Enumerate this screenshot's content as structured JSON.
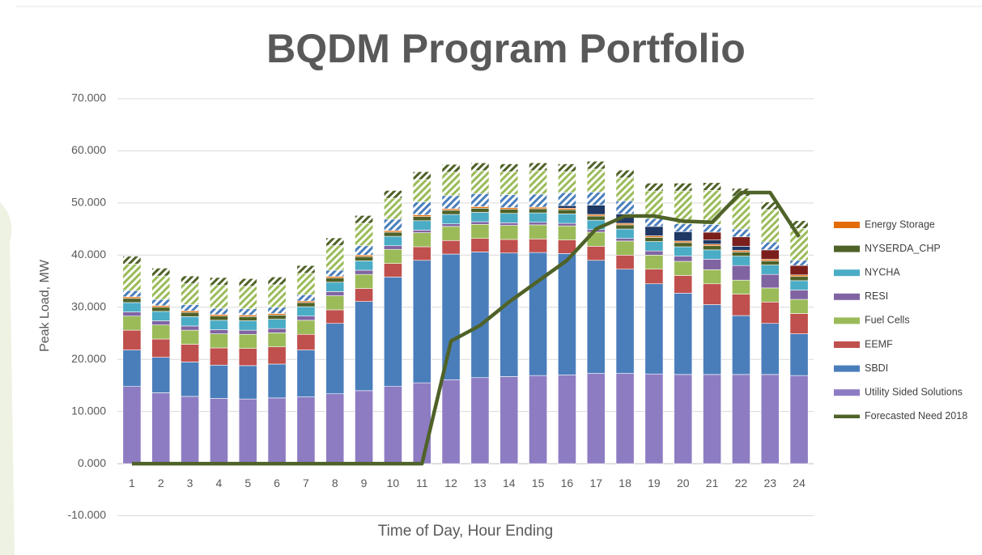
{
  "chart_data": {
    "type": "stacked_bar_line",
    "title": "BQDM Program Portfolio",
    "y_axis_label": "Peak Load, MW",
    "x_axis_label": "Time of Day, Hour Ending",
    "categories": [
      "1",
      "2",
      "3",
      "4",
      "5",
      "6",
      "7",
      "8",
      "9",
      "10",
      "11",
      "12",
      "13",
      "14",
      "15",
      "16",
      "17",
      "18",
      "19",
      "20",
      "21",
      "22",
      "23",
      "24"
    ],
    "ylim": [
      -10,
      70
    ],
    "yticks": [
      {
        "value": -10,
        "label": "-10.000"
      },
      {
        "value": 0,
        "label": "0.000"
      },
      {
        "value": 10,
        "label": "10.000"
      },
      {
        "value": 20,
        "label": "20.000"
      },
      {
        "value": 30,
        "label": "30.000"
      },
      {
        "value": 40,
        "label": "40.000"
      },
      {
        "value": 50,
        "label": "50.000"
      },
      {
        "value": 60,
        "label": "60.000"
      },
      {
        "value": 70,
        "label": "70.000"
      }
    ],
    "grid": true,
    "legend_position": "right",
    "series": [
      {
        "name": "Utility Sided Solutions",
        "color": "#8e7cc3",
        "values": [
          14.8,
          13.6,
          12.9,
          12.5,
          12.4,
          12.6,
          12.8,
          13.4,
          14.0,
          14.8,
          15.5,
          16.1,
          16.5,
          16.7,
          16.9,
          17.0,
          17.3,
          17.3,
          17.2,
          17.1,
          17.1,
          17.1,
          17.1,
          16.9
        ]
      },
      {
        "name": "SBDI",
        "color": "#4a7ebb",
        "values": [
          7.0,
          6.8,
          6.6,
          6.4,
          6.4,
          6.5,
          9.0,
          13.5,
          17.1,
          21.0,
          23.5,
          24.1,
          24.1,
          23.7,
          23.6,
          23.3,
          21.7,
          20.0,
          17.3,
          15.6,
          13.4,
          11.3,
          9.8,
          8.0
        ]
      },
      {
        "name": "EEMF",
        "color": "#c0504d",
        "values": [
          3.8,
          3.5,
          3.4,
          3.3,
          3.3,
          3.3,
          3.0,
          2.6,
          2.5,
          2.6,
          2.6,
          2.6,
          2.6,
          2.6,
          2.6,
          2.6,
          2.7,
          2.7,
          2.8,
          3.4,
          4.0,
          4.1,
          4.1,
          3.9
        ]
      },
      {
        "name": "Fuel Cells",
        "color": "#9bbb59",
        "values": [
          2.7,
          2.7,
          2.7,
          2.7,
          2.7,
          2.7,
          2.7,
          2.7,
          2.7,
          2.7,
          2.7,
          2.7,
          2.7,
          2.7,
          2.7,
          2.7,
          2.7,
          2.7,
          2.7,
          2.7,
          2.7,
          2.7,
          2.7,
          2.7
        ]
      },
      {
        "name": "RESI",
        "color": "#8064a2",
        "values": [
          0.8,
          0.8,
          0.8,
          0.8,
          0.8,
          0.8,
          0.8,
          0.8,
          0.8,
          0.7,
          0.5,
          0.5,
          0.5,
          0.5,
          0.5,
          0.5,
          0.5,
          0.5,
          0.8,
          1.0,
          2.0,
          2.8,
          2.6,
          1.8
        ]
      },
      {
        "name": "NYCHA",
        "color": "#4bacc6",
        "values": [
          1.8,
          1.8,
          1.8,
          1.8,
          1.8,
          1.8,
          1.8,
          1.8,
          1.8,
          1.8,
          1.8,
          1.8,
          1.8,
          1.8,
          1.8,
          1.8,
          1.8,
          1.8,
          1.8,
          1.8,
          1.8,
          1.8,
          1.8,
          1.8
        ]
      },
      {
        "name": "NYSERDA_CHP",
        "color": "#4f6228",
        "values": [
          0.8,
          0.8,
          0.8,
          0.8,
          0.8,
          0.8,
          0.8,
          0.8,
          0.8,
          0.8,
          0.8,
          0.8,
          0.8,
          0.8,
          0.8,
          0.8,
          0.8,
          0.8,
          0.8,
          0.8,
          0.8,
          0.8,
          0.8,
          0.8
        ]
      },
      {
        "name": "Energy Storage",
        "color": "#e36c09",
        "values": [
          0.3,
          0.3,
          0.3,
          0.3,
          0.3,
          0.3,
          0.3,
          0.3,
          0.3,
          0.3,
          0.3,
          0.3,
          0.3,
          0.3,
          0.3,
          0.3,
          0.3,
          0.3,
          0.3,
          0.3,
          0.3,
          0.3,
          0.3,
          0.3
        ]
      },
      {
        "color": "#1f3864",
        "values": [
          0,
          0,
          0,
          0,
          0,
          0,
          0,
          0,
          0,
          0,
          0,
          0,
          0,
          0,
          0,
          0.5,
          1.8,
          1.8,
          1.8,
          1.8,
          0.8,
          0.8,
          0,
          0
        ]
      },
      {
        "color": "#7b1f1c",
        "values": [
          0,
          0,
          0,
          0,
          0,
          0,
          0,
          0,
          0,
          0,
          0,
          0,
          0,
          0,
          0,
          0,
          0,
          0,
          0,
          0,
          1.5,
          1.8,
          1.8,
          1.8
        ]
      },
      {
        "color": "#4a7ebb",
        "pattern": "hatch",
        "values": [
          1.2,
          1.2,
          1.2,
          1.2,
          1.2,
          1.2,
          1.2,
          1.2,
          1.8,
          2.2,
          2.5,
          2.5,
          2.5,
          2.5,
          2.5,
          2.5,
          2.5,
          2.5,
          1.5,
          1.5,
          1.5,
          1.5,
          1.5,
          1.0
        ]
      },
      {
        "color": "#9bbb59",
        "pattern": "hatch",
        "values": [
          5.1,
          4.5,
          4.0,
          4.4,
          4.3,
          4.3,
          4.1,
          4.7,
          4.3,
          4.0,
          4.3,
          4.5,
          4.4,
          4.4,
          4.5,
          4.0,
          4.4,
          4.4,
          5.3,
          6.3,
          6.5,
          6.3,
          6.2,
          6.1
        ]
      },
      {
        "color": "#4f6228",
        "pattern": "hatch",
        "values": [
          1.5,
          1.5,
          1.5,
          1.5,
          1.5,
          1.5,
          1.5,
          1.5,
          1.5,
          1.5,
          1.5,
          1.5,
          1.5,
          1.5,
          1.5,
          1.5,
          1.5,
          1.5,
          1.5,
          1.5,
          1.5,
          1.5,
          1.5,
          1.5
        ]
      }
    ],
    "line_series": {
      "name": "Forecasted Need 2018",
      "color": "#4f6228",
      "values": [
        0,
        0,
        0,
        0,
        0,
        0,
        0,
        0,
        0,
        0,
        0,
        23.5,
        26.5,
        31,
        35,
        39,
        45,
        47.5,
        47.5,
        46.5,
        46.3,
        52,
        52,
        43.5
      ]
    }
  }
}
